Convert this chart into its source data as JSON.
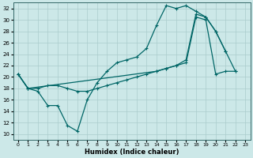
{
  "xlabel": "Humidex (Indice chaleur)",
  "xlim": [
    -0.5,
    23.5
  ],
  "ylim": [
    9,
    33
  ],
  "yticks": [
    10,
    12,
    14,
    16,
    18,
    20,
    22,
    24,
    26,
    28,
    30,
    32
  ],
  "xticks": [
    0,
    1,
    2,
    3,
    4,
    5,
    6,
    7,
    8,
    9,
    10,
    11,
    12,
    13,
    14,
    15,
    16,
    17,
    18,
    19,
    20,
    21,
    22,
    23
  ],
  "bg_color": "#cce8e8",
  "grid_color": "#aacccc",
  "line_color": "#006666",
  "line1_x": [
    0,
    1,
    2,
    3,
    4,
    5,
    6,
    7,
    8,
    9,
    10,
    11,
    12,
    13,
    14,
    15,
    16,
    17,
    18,
    19,
    20,
    21
  ],
  "line1_y": [
    20.5,
    18,
    17.5,
    15,
    15,
    11.5,
    10.5,
    16,
    19,
    21,
    22.5,
    23,
    23.5,
    25,
    29,
    32.5,
    32,
    32.5,
    31.5,
    30.5,
    28,
    24.5
  ],
  "line2_x": [
    0,
    1,
    2,
    3,
    4,
    5,
    6,
    7,
    8,
    9,
    10,
    11,
    12,
    13,
    14,
    15,
    16,
    17,
    18,
    19,
    20,
    21,
    22
  ],
  "line2_y": [
    20.5,
    18,
    18,
    18.5,
    18.5,
    18,
    17.5,
    17.5,
    18,
    18.5,
    19,
    19.5,
    20,
    20.5,
    21,
    21.5,
    22,
    22.5,
    30.5,
    30,
    20.5,
    21,
    21
  ],
  "line3_x": [
    0,
    1,
    14,
    15,
    16,
    17,
    18,
    19,
    20,
    21,
    22
  ],
  "line3_y": [
    20.5,
    18,
    21,
    21.5,
    22,
    23,
    31,
    30.5,
    28,
    24.5,
    21
  ]
}
